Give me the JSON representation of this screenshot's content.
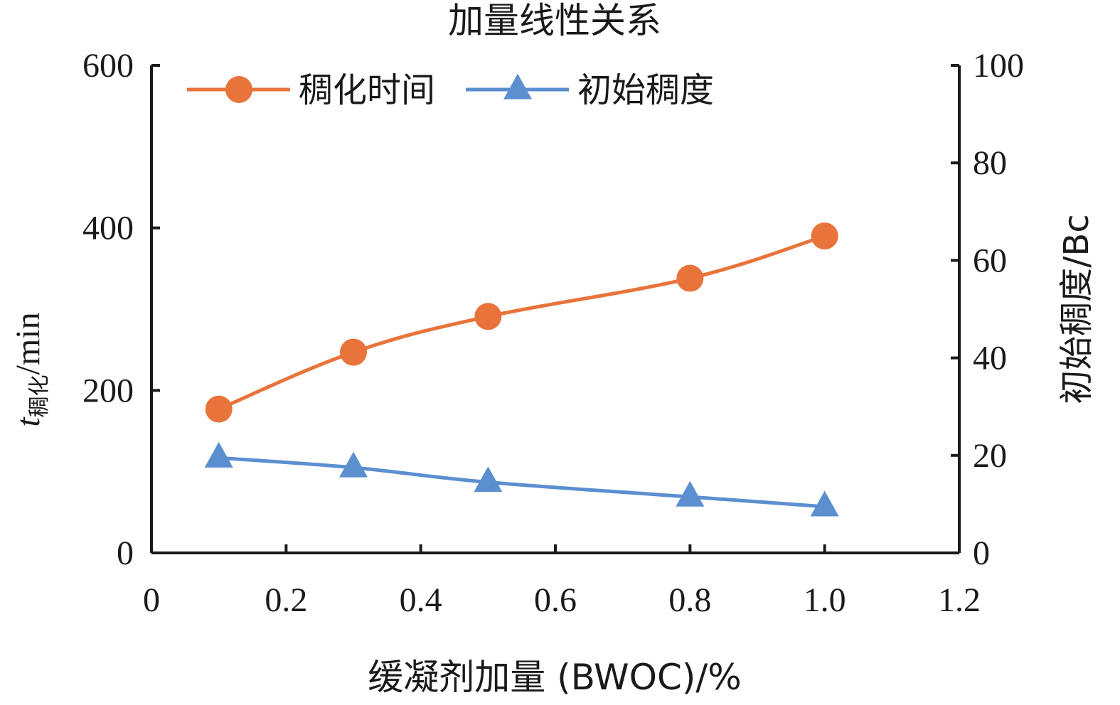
{
  "chart_data": {
    "type": "line",
    "title": "加量线性关系",
    "xlabel": "缓凝剂加量 (BWOC)/%",
    "ylabel": {
      "main": "t",
      "subscript": "稠化",
      "unit": "/min"
    },
    "y2label": "初始稠度/Bc",
    "xlim": [
      0,
      1.2
    ],
    "ylim": [
      0,
      600
    ],
    "y2lim": [
      0,
      100
    ],
    "x_ticks": [
      "0",
      "0.2",
      "0.4",
      "0.6",
      "0.8",
      "1.0",
      "1.2"
    ],
    "y_ticks": [
      "0",
      "200",
      "400",
      "600"
    ],
    "y2_ticks": [
      "0",
      "20",
      "40",
      "60",
      "80",
      "100"
    ],
    "grid": false,
    "legend_position": "top-left",
    "series": [
      {
        "name": "稠化时间",
        "axis": "left",
        "marker": "circle",
        "color": "#E8743B",
        "x": [
          0.1,
          0.3,
          0.5,
          0.8,
          1.0
        ],
        "values": [
          177,
          247,
          291,
          338,
          390
        ]
      },
      {
        "name": "初始稠度",
        "axis": "right",
        "marker": "triangle",
        "color": "#5B8FD0",
        "x": [
          0.1,
          0.3,
          0.5,
          0.8,
          1.0
        ],
        "values": [
          19.5,
          17.5,
          14.5,
          11.5,
          9.5
        ]
      }
    ]
  }
}
